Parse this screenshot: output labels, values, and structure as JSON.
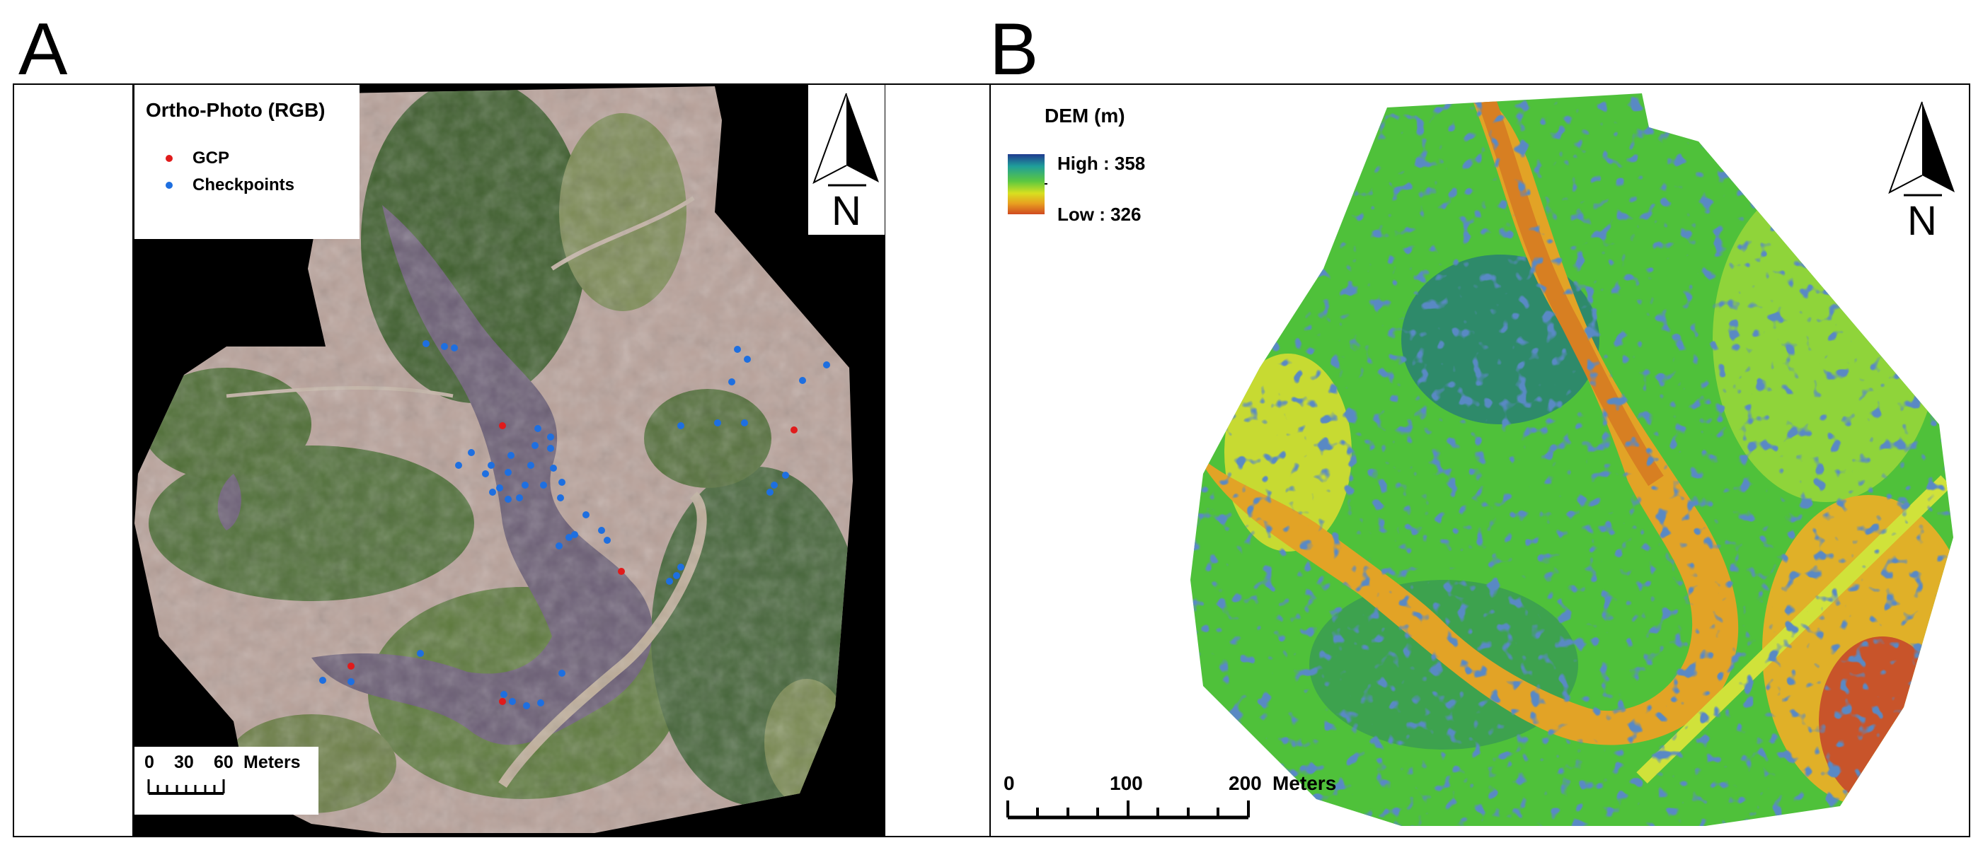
{
  "panels": {
    "a": {
      "letter": "A",
      "legend": {
        "title": "Ortho-Photo (RGB)",
        "items": [
          {
            "label": "GCP",
            "color": "#e01b1b"
          },
          {
            "label": "Checkpoints",
            "color": "#1e6fe0"
          }
        ]
      },
      "north_label": "N",
      "scale": {
        "ticks": [
          "0",
          "30",
          "60"
        ],
        "unit": "Meters"
      }
    },
    "b": {
      "letter": "B",
      "legend": {
        "title": "DEM (m)",
        "high": "High : 358",
        "low": "Low : 326",
        "ramp_colors": [
          "#1f3a8f",
          "#1f9e9a",
          "#5cc840",
          "#d8e020",
          "#e8a020",
          "#d04a20"
        ]
      },
      "north_label": "N",
      "scale": {
        "ticks": [
          "0",
          "100",
          "200"
        ],
        "unit": "Meters"
      }
    }
  }
}
